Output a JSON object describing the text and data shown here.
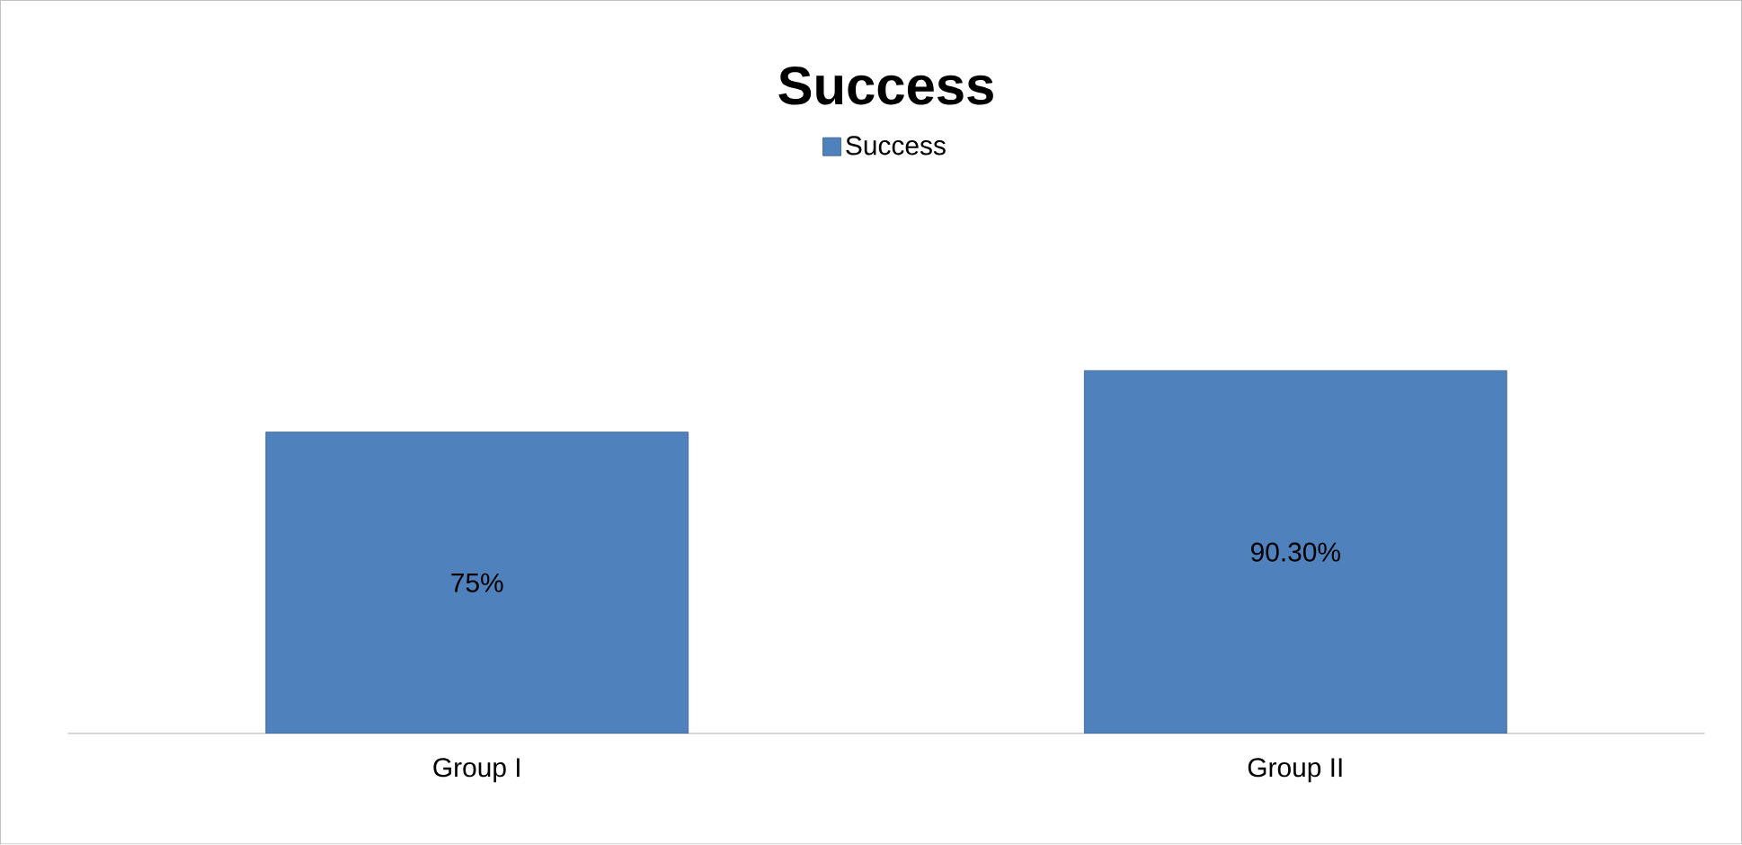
{
  "chart_data": {
    "type": "bar",
    "title": "Success",
    "categories": [
      "Group I",
      "Group II"
    ],
    "series": [
      {
        "name": "Success",
        "color": "#4f81bd",
        "values": [
          75,
          90.3
        ],
        "value_labels": [
          "75%",
          "90.30%"
        ]
      }
    ],
    "legend": "top"
  }
}
